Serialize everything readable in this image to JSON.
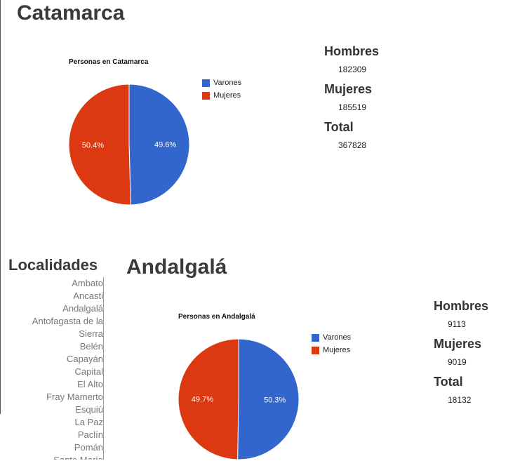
{
  "province": {
    "title": "Catamarca",
    "chart_title": "Personas en Catamarca",
    "stats": {
      "hombres_label": "Hombres",
      "hombres_value": "182309",
      "mujeres_label": "Mujeres",
      "mujeres_value": "185519",
      "total_label": "Total",
      "total_value": "367828"
    }
  },
  "sidebar": {
    "title": "Localidades",
    "items": [
      "Ambato",
      "Ancasti",
      "Andalgalá",
      "Antofagasta de la",
      "Sierra",
      "Belén",
      "Capayán",
      "Capital",
      "El Alto",
      "Fray Mamerto",
      "Esquiú",
      "La Paz",
      "Paclín",
      "Pomán",
      "Santa María"
    ]
  },
  "locality": {
    "title": "Andalgalá",
    "chart_title": "Personas en Andalgalá",
    "stats": {
      "hombres_label": "Hombres",
      "hombres_value": "9113",
      "mujeres_label": "Mujeres",
      "mujeres_value": "9019",
      "total_label": "Total",
      "total_value": "18132"
    }
  },
  "chart_data": [
    {
      "type": "pie",
      "title": "Personas en Catamarca",
      "categories": [
        "Varones",
        "Mujeres"
      ],
      "values": [
        182309,
        185519
      ],
      "labels": [
        "49.6%",
        "50.4%"
      ],
      "colors": [
        "#3366cc",
        "#dc3912"
      ],
      "legend": "right"
    },
    {
      "type": "pie",
      "title": "Personas en Andalgalá",
      "categories": [
        "Varones",
        "Mujeres"
      ],
      "values": [
        9113,
        9019
      ],
      "labels": [
        "50.3%",
        "49.7%"
      ],
      "colors": [
        "#3366cc",
        "#dc3912"
      ],
      "legend": "right"
    }
  ]
}
